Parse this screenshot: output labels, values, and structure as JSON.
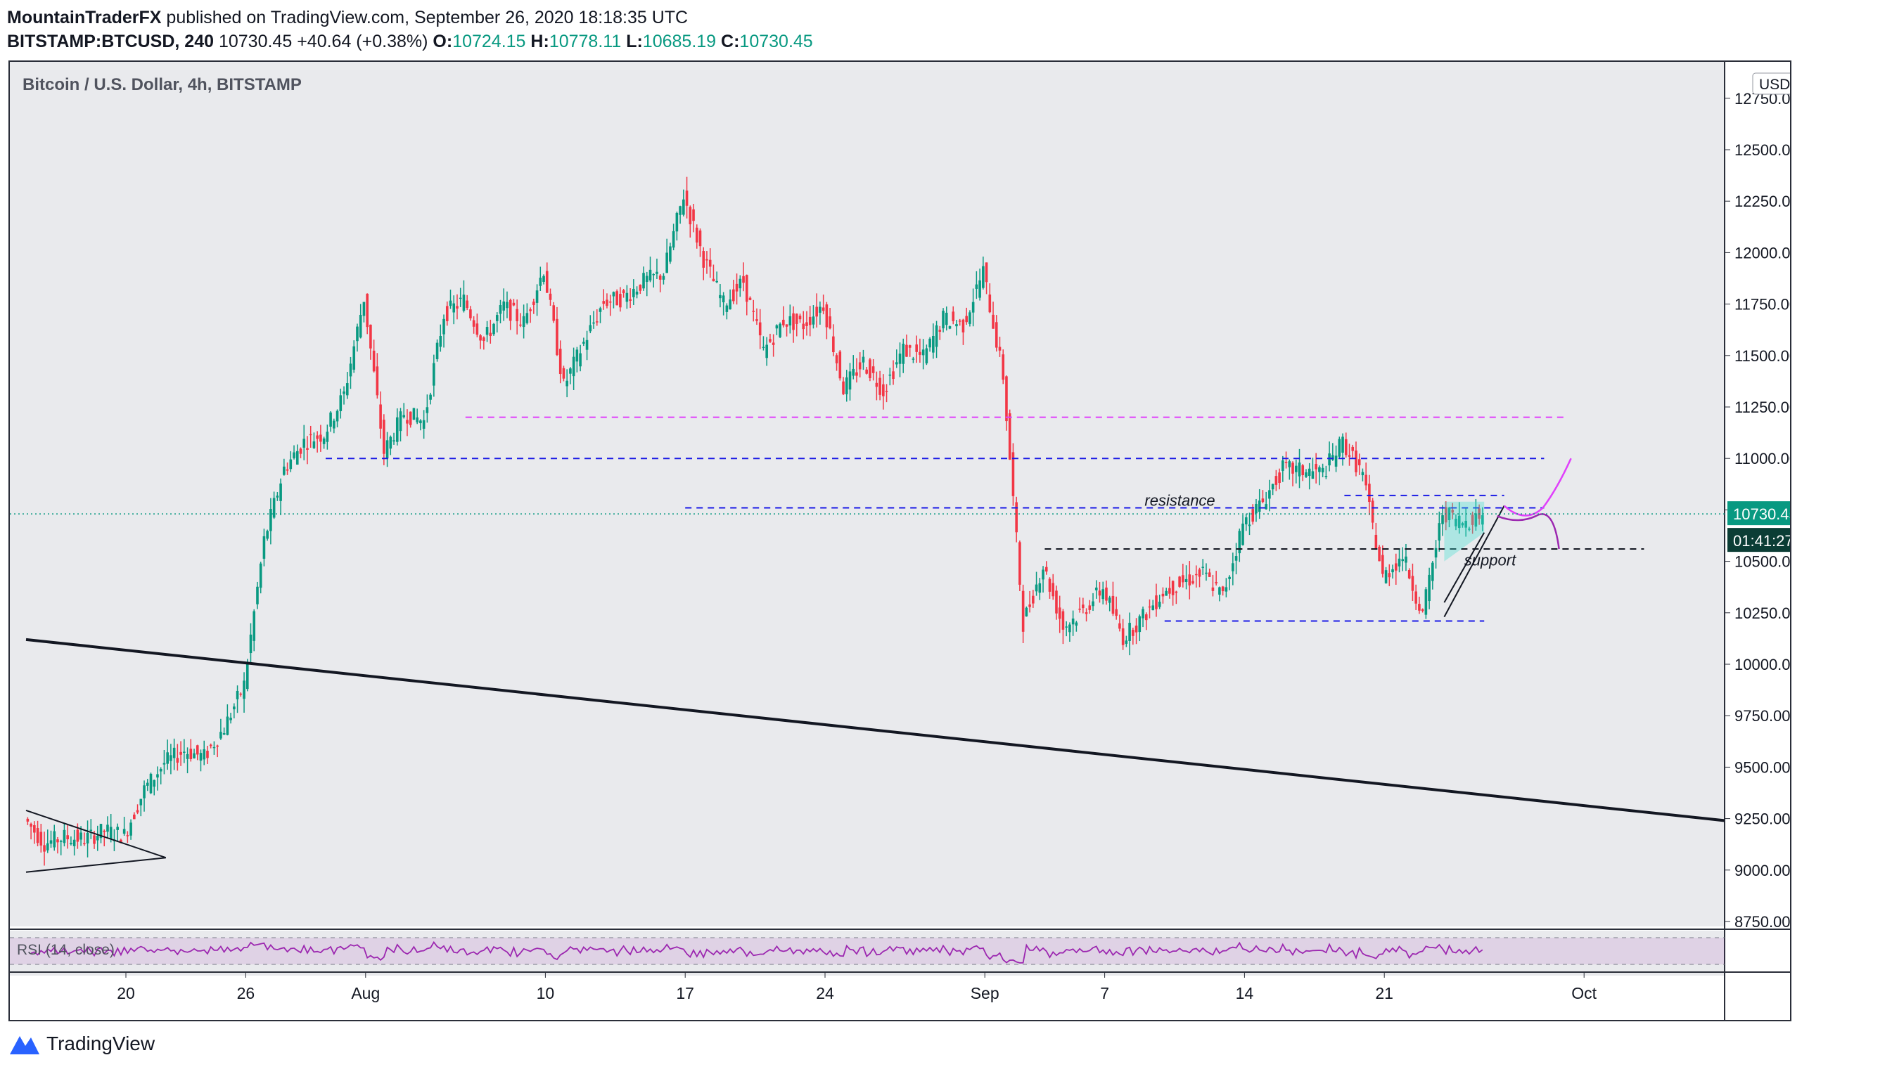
{
  "header": {
    "author": "MountainTraderFX",
    "published_text": "published on TradingView.com, September 26, 2020 18:18:35 UTC",
    "symbol": "BITSTAMP:BTCUSD, 240",
    "last": "10730.45",
    "change": "+40.64 (+0.38%)",
    "o_label": "O:",
    "o_value": "10724.15",
    "h_label": "H:",
    "h_value": "10778.11",
    "l_label": "L:",
    "l_value": "10685.19",
    "c_label": "C:",
    "c_value": "10730.45"
  },
  "footer": {
    "brand": "TradingView"
  },
  "colors": {
    "up": "#089981",
    "down": "#f23645",
    "bg": "#e9eaed",
    "rsi": "#9c27b0",
    "pink": "#e040fb",
    "blue": "#1a1ae6",
    "cyan": "#40e0d0",
    "dark": "#131722"
  },
  "chart_data": {
    "type": "candlestick",
    "title": "Bitcoin / U.S. Dollar, 4h, BITSTAMP",
    "currency": "USD",
    "ylim": [
      8650,
      12750
    ],
    "y_ticks": [
      "8750.00",
      "9000.00",
      "9250.00",
      "9500.00",
      "9750.00",
      "10000.00",
      "10250.00",
      "10500.00",
      "10750.00",
      "11000.00",
      "11250.00",
      "11500.00",
      "11750.00",
      "12000.00",
      "12250.00",
      "12500.00",
      "12750.00"
    ],
    "x_ticks": [
      {
        "label": "20",
        "date": "2020-07-20"
      },
      {
        "label": "26",
        "date": "2020-07-26"
      },
      {
        "label": "Aug",
        "date": "2020-08-01"
      },
      {
        "label": "10",
        "date": "2020-08-10"
      },
      {
        "label": "17",
        "date": "2020-08-17"
      },
      {
        "label": "24",
        "date": "2020-08-24"
      },
      {
        "label": "Sep",
        "date": "2020-09-01"
      },
      {
        "label": "7",
        "date": "2020-09-07"
      },
      {
        "label": "14",
        "date": "2020-09-14"
      },
      {
        "label": "21",
        "date": "2020-09-21"
      },
      {
        "label": "Oct",
        "date": "2020-10-01"
      }
    ],
    "price_anchors": [
      [
        "2020-07-15",
        9250
      ],
      [
        "2020-07-16",
        9130
      ],
      [
        "2020-07-17",
        9160
      ],
      [
        "2020-07-18",
        9150
      ],
      [
        "2020-07-19",
        9190
      ],
      [
        "2020-07-20",
        9170
      ],
      [
        "2020-07-21",
        9390
      ],
      [
        "2020-07-22",
        9520
      ],
      [
        "2020-07-23",
        9580
      ],
      [
        "2020-07-24",
        9550
      ],
      [
        "2020-07-25",
        9690
      ],
      [
        "2020-07-26",
        9900
      ],
      [
        "2020-07-27",
        10600
      ],
      [
        "2020-07-28",
        10950
      ],
      [
        "2020-07-29",
        11080
      ],
      [
        "2020-07-30",
        11120
      ],
      [
        "2020-07-31",
        11310
      ],
      [
        "2020-08-01",
        11780
      ],
      [
        "2020-08-02",
        11030
      ],
      [
        "2020-08-03",
        11220
      ],
      [
        "2020-08-04",
        11180
      ],
      [
        "2020-08-05",
        11700
      ],
      [
        "2020-08-06",
        11770
      ],
      [
        "2020-08-07",
        11570
      ],
      [
        "2020-08-08",
        11740
      ],
      [
        "2020-08-09",
        11660
      ],
      [
        "2020-08-10",
        11920
      ],
      [
        "2020-08-11",
        11350
      ],
      [
        "2020-08-12",
        11560
      ],
      [
        "2020-08-13",
        11760
      ],
      [
        "2020-08-14",
        11780
      ],
      [
        "2020-08-15",
        11860
      ],
      [
        "2020-08-16",
        11900
      ],
      [
        "2020-08-17",
        12280
      ],
      [
        "2020-08-18",
        11970
      ],
      [
        "2020-08-19",
        11750
      ],
      [
        "2020-08-20",
        11860
      ],
      [
        "2020-08-21",
        11520
      ],
      [
        "2020-08-22",
        11670
      ],
      [
        "2020-08-23",
        11650
      ],
      [
        "2020-08-24",
        11750
      ],
      [
        "2020-08-25",
        11340
      ],
      [
        "2020-08-26",
        11470
      ],
      [
        "2020-08-27",
        11330
      ],
      [
        "2020-08-28",
        11530
      ],
      [
        "2020-08-29",
        11490
      ],
      [
        "2020-08-30",
        11680
      ],
      [
        "2020-08-31",
        11650
      ],
      [
        "2020-09-01",
        11910
      ],
      [
        "2020-09-02",
        11400
      ],
      [
        "2020-09-03",
        10200
      ],
      [
        "2020-09-04",
        10480
      ],
      [
        "2020-09-05",
        10180
      ],
      [
        "2020-09-06",
        10260
      ],
      [
        "2020-09-07",
        10370
      ],
      [
        "2020-09-08",
        10130
      ],
      [
        "2020-09-09",
        10230
      ],
      [
        "2020-09-10",
        10350
      ],
      [
        "2020-09-11",
        10400
      ],
      [
        "2020-09-12",
        10440
      ],
      [
        "2020-09-13",
        10330
      ],
      [
        "2020-09-14",
        10680
      ],
      [
        "2020-09-15",
        10790
      ],
      [
        "2020-09-16",
        10950
      ],
      [
        "2020-09-17",
        10940
      ],
      [
        "2020-09-18",
        10930
      ],
      [
        "2020-09-19",
        11080
      ],
      [
        "2020-09-20",
        10920
      ],
      [
        "2020-09-21",
        10420
      ],
      [
        "2020-09-22",
        10530
      ],
      [
        "2020-09-23",
        10240
      ],
      [
        "2020-09-24",
        10740
      ],
      [
        "2020-09-25",
        10690
      ],
      [
        "2020-09-26",
        10730
      ]
    ],
    "levels": [
      {
        "price": 11200,
        "from": "2020-08-06",
        "to": "2020-09-30",
        "color": "pink",
        "dash": true
      },
      {
        "price": 11000,
        "from": "2020-07-30",
        "to": "2020-09-29",
        "color": "blue",
        "dash": true
      },
      {
        "price": 10820,
        "from": "2020-09-19",
        "to": "2020-09-27",
        "color": "blue",
        "dash": true
      },
      {
        "price": 10760,
        "from": "2020-08-17",
        "to": "2020-09-29",
        "color": "blue",
        "dash": true
      },
      {
        "price": 10560,
        "from": "2020-09-04",
        "to": "2020-10-04",
        "color": "dark",
        "dash": true
      },
      {
        "price": 10210,
        "from": "2020-09-10",
        "to": "2020-09-26",
        "color": "blue",
        "dash": true
      }
    ],
    "trendlines": [
      {
        "from": [
          "2020-07-15",
          10120
        ],
        "to": [
          "2020-10-10",
          9220
        ],
        "width": 4
      },
      {
        "from": [
          "2020-07-15",
          9290
        ],
        "to": [
          "2020-07-22",
          9060
        ],
        "width": 2
      },
      {
        "from": [
          "2020-07-15",
          8990
        ],
        "to": [
          "2020-07-22",
          9060
        ],
        "width": 2
      },
      {
        "from": [
          "2020-09-24",
          10230
        ],
        "to": [
          "2020-09-27",
          10770
        ],
        "width": 2
      },
      {
        "from": [
          "2020-09-24",
          10300
        ],
        "to": [
          "2020-09-26",
          10640
        ],
        "width": 2
      }
    ],
    "annotations": [
      {
        "text": "resistance",
        "date": "2020-09-09",
        "price": 10770
      },
      {
        "text": "support",
        "date": "2020-09-25",
        "price": 10480
      }
    ],
    "last_price": "10730.45",
    "countdown": "01:41:27",
    "rsi_label": "RSI (14, close)"
  }
}
